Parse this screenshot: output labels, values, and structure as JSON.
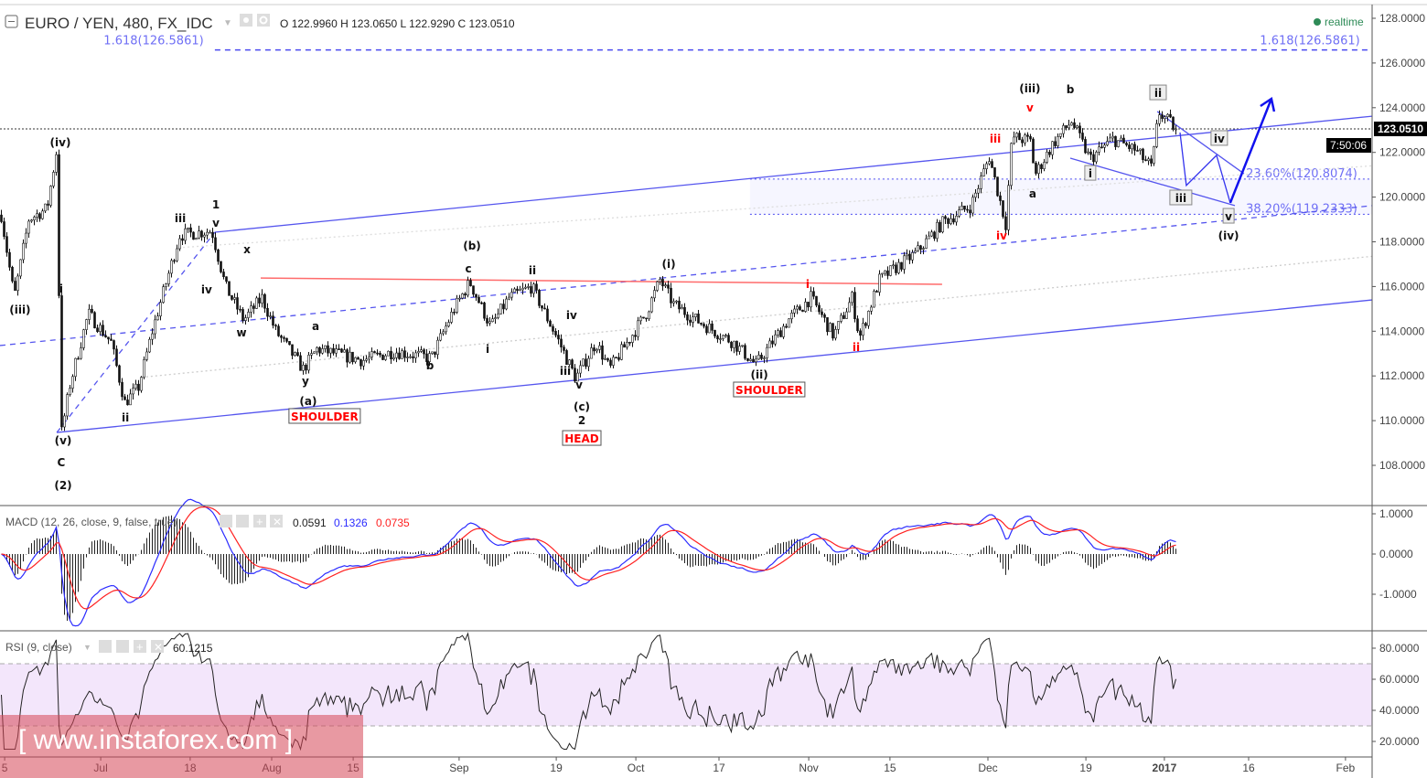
{
  "header": {
    "symbol": "EURO / YEN, 480, FX_IDC",
    "ohlc": {
      "o_label": "O",
      "o": "122.9960",
      "h_label": "H",
      "h": "123.0650",
      "l_label": "L",
      "l": "122.9290",
      "c_label": "C",
      "c": "123.0510"
    },
    "status": "realtime",
    "status_color": "#2e8b57"
  },
  "price_axis": {
    "ticks": [
      "128.0000",
      "126.0000",
      "124.0000",
      "122.0000",
      "120.0000",
      "118.0000",
      "116.0000",
      "114.0000",
      "112.0000",
      "110.0000",
      "108.0000"
    ],
    "tick_values": [
      128,
      126,
      124,
      122,
      120,
      118,
      116,
      114,
      112,
      110,
      108
    ],
    "last_price": "123.0510",
    "last_price_value": 123.051,
    "countdown": "7:50:06"
  },
  "macd": {
    "title": "MACD (12, 26, close, 9, false, true)",
    "hist": "0.0591",
    "macd": "0.1326",
    "signal": "0.0735",
    "ticks": [
      "1.0000",
      "0.0000",
      "-1.0000"
    ],
    "tick_values": [
      1,
      0,
      -1
    ],
    "macd_color": "#2b2bff",
    "signal_color": "#ff2020"
  },
  "rsi": {
    "title": "RSI (9, close)",
    "value": "60.1215",
    "ticks": [
      "80.0000",
      "60.0000",
      "40.0000",
      "20.0000"
    ],
    "tick_values": [
      80,
      60,
      40,
      20
    ],
    "band": [
      30,
      70
    ]
  },
  "time_axis": [
    {
      "bar": 1.7,
      "label": "5"
    },
    {
      "bar": 36.7,
      "label": "Jul"
    },
    {
      "bar": 69.3,
      "label": "18"
    },
    {
      "bar": 99,
      "label": "Aug"
    },
    {
      "bar": 128.7,
      "label": "15"
    },
    {
      "bar": 167.3,
      "label": "Sep"
    },
    {
      "bar": 202.7,
      "label": "19"
    },
    {
      "bar": 231.7,
      "label": "Oct"
    },
    {
      "bar": 262,
      "label": "17"
    },
    {
      "bar": 294.7,
      "label": "Nov"
    },
    {
      "bar": 324.3,
      "label": "15"
    },
    {
      "bar": 360,
      "label": "Dec"
    },
    {
      "bar": 395.7,
      "label": "19"
    },
    {
      "bar": 424.3,
      "label": "2017",
      "bold": true
    },
    {
      "bar": 455,
      "label": "16"
    },
    {
      "bar": 490.3,
      "label": "Feb"
    }
  ],
  "watermark": "[ www.instaforex.com ]",
  "chart_data": {
    "type": "candlestick",
    "title": "EURO / YEN, 480, FX_IDC",
    "ylim": [
      106.5,
      128.6
    ],
    "last_bar": 428,
    "price_path": [
      [
        0,
        119.2
      ],
      [
        4.7,
        115.5
      ],
      [
        10,
        119.0
      ],
      [
        16.7,
        119.5
      ],
      [
        20,
        122.0
      ],
      [
        22,
        109.5
      ],
      [
        25,
        111.6
      ],
      [
        31.7,
        114.8
      ],
      [
        40,
        113.5
      ],
      [
        45,
        110.8
      ],
      [
        50,
        111.5
      ],
      [
        55,
        114
      ],
      [
        65,
        118.3
      ],
      [
        76.7,
        118.5
      ],
      [
        81.7,
        116
      ],
      [
        88.3,
        114.5
      ],
      [
        95,
        115.5
      ],
      [
        100,
        114
      ],
      [
        110,
        112.3
      ],
      [
        115,
        113.2
      ],
      [
        131.7,
        112.7
      ],
      [
        143.3,
        113.1
      ],
      [
        156.7,
        112.8
      ],
      [
        165,
        115
      ],
      [
        170.7,
        116.2
      ],
      [
        178.3,
        114.2
      ],
      [
        185,
        115.5
      ],
      [
        193.3,
        116
      ],
      [
        203.3,
        113.5
      ],
      [
        209.3,
        111.9
      ],
      [
        216.7,
        113.5
      ],
      [
        221.7,
        112.3
      ],
      [
        235,
        114.8
      ],
      [
        240,
        116.3
      ],
      [
        245,
        115.2
      ],
      [
        253.3,
        114.5
      ],
      [
        266.7,
        113.5
      ],
      [
        275,
        112.5
      ],
      [
        286.7,
        114.5
      ],
      [
        295,
        115.5
      ],
      [
        303.3,
        113.8
      ],
      [
        310,
        115.5
      ],
      [
        312.7,
        113.7
      ],
      [
        320,
        116.3
      ],
      [
        333.3,
        117.5
      ],
      [
        343.3,
        118.9
      ],
      [
        353.3,
        119.6
      ],
      [
        360,
        121.8
      ],
      [
        366,
        118.8
      ],
      [
        368.3,
        122.7
      ],
      [
        375,
        122.5
      ],
      [
        376.7,
        121.0
      ],
      [
        383.3,
        122.4
      ],
      [
        390,
        123.4
      ],
      [
        396.7,
        121.7
      ],
      [
        405,
        122.6
      ],
      [
        413.3,
        122.1
      ],
      [
        419.3,
        121.3
      ],
      [
        421.7,
        123.8
      ],
      [
        428.3,
        123.05
      ]
    ],
    "lines": [
      {
        "name": "upper-channel",
        "pts": [
          78.3,
          118.43,
          500,
          123.62
        ],
        "color": "#5555ee",
        "style": "solid"
      },
      {
        "name": "lower-channel",
        "pts": [
          20.7,
          109.47,
          500,
          115.4
        ],
        "color": "#5555ee",
        "style": "solid"
      },
      {
        "name": "median-line",
        "pts": [
          0,
          113.36,
          500,
          119.62
        ],
        "color": "#5555ee",
        "style": "dashed"
      },
      {
        "name": "wave-2-line",
        "pts": [
          20.7,
          109.47,
          78.3,
          118.43
        ],
        "color": "#5555ee",
        "style": "dashed"
      },
      {
        "name": "inner-parallel-1",
        "pts": [
          53.3,
          111.96,
          500,
          117.35
        ],
        "color": "#cccccc",
        "style": "dotted"
      },
      {
        "name": "inner-parallel-2",
        "pts": [
          66.7,
          117.75,
          500,
          121.4
        ],
        "color": "#dddddd",
        "style": "dotted"
      },
      {
        "name": "neckline",
        "pts": [
          95,
          116.38,
          343.3,
          116.1
        ],
        "color": "#ff6b6b",
        "style": "solid"
      },
      {
        "name": "triangle-top",
        "pts": [
          421.7,
          123.83,
          453.3,
          121.05
        ],
        "color": "#5555ee",
        "style": "solid"
      },
      {
        "name": "triangle-bottom",
        "pts": [
          390,
          121.74,
          450,
          119.62
        ],
        "color": "#5555ee",
        "style": "solid"
      }
    ],
    "projection": [
      [
        430,
        122.89
      ],
      [
        432.3,
        120.52
      ],
      [
        443.3,
        121.87
      ],
      [
        448.3,
        119.74
      ],
      [
        463.3,
        124.4
      ]
    ],
    "levels": [
      {
        "name": "fib-1618",
        "value": 126.5861,
        "label": "1.618(126.5861)",
        "from": 78.3,
        "style": "dashed"
      },
      {
        "name": "fib-236",
        "value": 120.8074,
        "label": "23.60%(120.8074)",
        "from": 273.3,
        "style": "dotted"
      },
      {
        "name": "fib-382",
        "value": 119.2333,
        "label": "38.20%(119.2333)",
        "from": 273.3,
        "style": "dotted"
      }
    ],
    "annotations": [
      {
        "t": 22,
        "p": 122.27,
        "text": "(iv)"
      },
      {
        "t": 7.3,
        "p": 114.79,
        "text": "(iii)"
      },
      {
        "t": 22.3,
        "p": 115.73,
        "text": "i"
      },
      {
        "t": 23,
        "p": 108.94,
        "text": "(v)"
      },
      {
        "t": 22.3,
        "p": 107.96,
        "text": "C"
      },
      {
        "t": 23,
        "p": 106.94,
        "text": "(2)"
      },
      {
        "t": 45.7,
        "p": 109.96,
        "text": "ii"
      },
      {
        "t": 65.7,
        "p": 118.88,
        "text": "iii"
      },
      {
        "t": 78.7,
        "p": 119.49,
        "text": "1"
      },
      {
        "t": 78.7,
        "p": 118.67,
        "text": "v"
      },
      {
        "t": 75.3,
        "p": 115.69,
        "text": "iv"
      },
      {
        "t": 90,
        "p": 117.49,
        "text": "x"
      },
      {
        "t": 88,
        "p": 113.77,
        "text": "w"
      },
      {
        "t": 115,
        "p": 114.05,
        "text": "a"
      },
      {
        "t": 111.3,
        "p": 111.6,
        "text": "y"
      },
      {
        "t": 112.3,
        "p": 110.7,
        "text": "(a)"
      },
      {
        "t": 118.3,
        "p": 110.25,
        "text": "SHOULDER",
        "color": "#ff0000",
        "boxed": true
      },
      {
        "t": 156.7,
        "p": 112.29,
        "text": "b"
      },
      {
        "t": 172,
        "p": 117.65,
        "text": "(b)"
      },
      {
        "t": 170.7,
        "p": 116.63,
        "text": "c"
      },
      {
        "t": 194,
        "p": 116.55,
        "text": "ii"
      },
      {
        "t": 177.7,
        "p": 113.03,
        "text": "i"
      },
      {
        "t": 208.3,
        "p": 114.54,
        "text": "iv"
      },
      {
        "t": 206,
        "p": 112.05,
        "text": "iii"
      },
      {
        "t": 211,
        "p": 111.44,
        "text": "v"
      },
      {
        "t": 212,
        "p": 110.45,
        "text": "(c)"
      },
      {
        "t": 212,
        "p": 109.84,
        "text": "2"
      },
      {
        "t": 212,
        "p": 109.02,
        "text": "HEAD",
        "color": "#ff0000",
        "boxed": true
      },
      {
        "t": 243.7,
        "p": 116.83,
        "text": "(i)"
      },
      {
        "t": 276.7,
        "p": 111.89,
        "text": "(ii)"
      },
      {
        "t": 280.3,
        "p": 111.19,
        "text": "SHOULDER",
        "color": "#ff0000",
        "boxed": true
      },
      {
        "t": 294.3,
        "p": 115.93,
        "text": "i",
        "color": "#ff0000"
      },
      {
        "t": 312,
        "p": 113.11,
        "text": "ii",
        "color": "#ff0000"
      },
      {
        "t": 362.7,
        "p": 122.44,
        "text": "iii",
        "color": "#ff0000"
      },
      {
        "t": 375.3,
        "p": 123.83,
        "text": "v",
        "color": "#ff0000"
      },
      {
        "t": 365,
        "p": 118.1,
        "text": "iv",
        "color": "#ff0000"
      },
      {
        "t": 375.3,
        "p": 124.69,
        "text": "(iii)"
      },
      {
        "t": 390,
        "p": 124.65,
        "text": "b"
      },
      {
        "t": 376.3,
        "p": 119.98,
        "text": "a"
      },
      {
        "t": 422,
        "p": 124.48,
        "text": "ii",
        "boxed": true
      },
      {
        "t": 397.3,
        "p": 120.88,
        "text": "i",
        "boxed": true
      },
      {
        "t": 430.3,
        "p": 119.78,
        "text": "iii",
        "boxed": true
      },
      {
        "t": 444.3,
        "p": 122.44,
        "text": "iv",
        "boxed": true
      },
      {
        "t": 447.7,
        "p": 118.96,
        "text": "v",
        "boxed": true
      },
      {
        "t": 447.7,
        "p": 118.1,
        "text": "(iv)"
      }
    ]
  }
}
